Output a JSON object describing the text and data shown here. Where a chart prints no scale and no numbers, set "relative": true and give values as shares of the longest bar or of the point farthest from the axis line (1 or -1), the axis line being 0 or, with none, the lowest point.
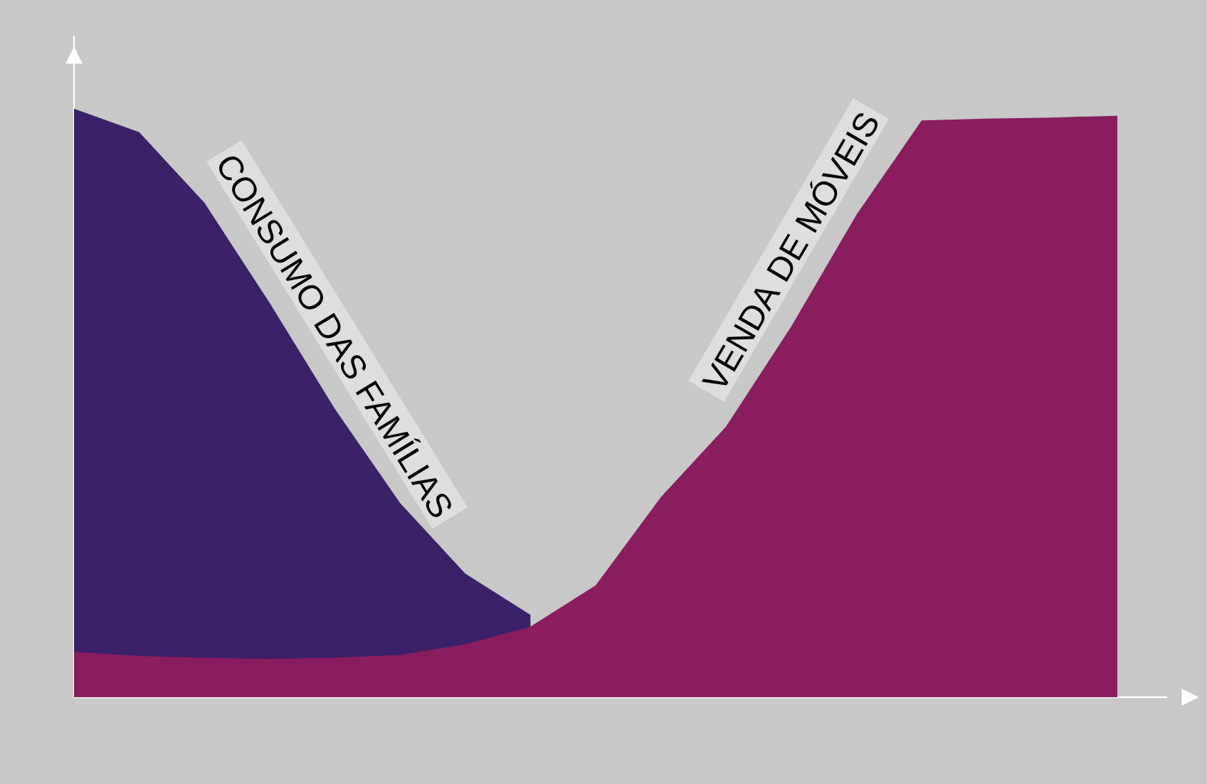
{
  "chart_data": {
    "type": "area",
    "relative": true,
    "categories": [
      null,
      null,
      null,
      null,
      null,
      null,
      null,
      null,
      null,
      null,
      null,
      null,
      null,
      null,
      null,
      null,
      null
    ],
    "series": [
      {
        "name": "CONSUMO DAS FAMÍLIAS",
        "color": "#3a2168",
        "values": [
          1,
          0.96,
          0.84,
          0.67,
          0.49,
          0.33,
          0.21,
          0.14,
          null,
          null,
          null,
          null,
          null,
          null,
          null,
          null,
          null
        ]
      },
      {
        "name": "VENDA DE MÓVEIS",
        "color": "#8a1c60",
        "values": [
          0.077,
          0.07,
          0.067,
          0.065,
          0.067,
          0.072,
          0.09,
          0.12,
          0.19,
          0.34,
          0.46,
          0.63,
          0.82,
          0.98,
          0.983,
          0.985,
          0.988
        ]
      }
    ]
  }
}
